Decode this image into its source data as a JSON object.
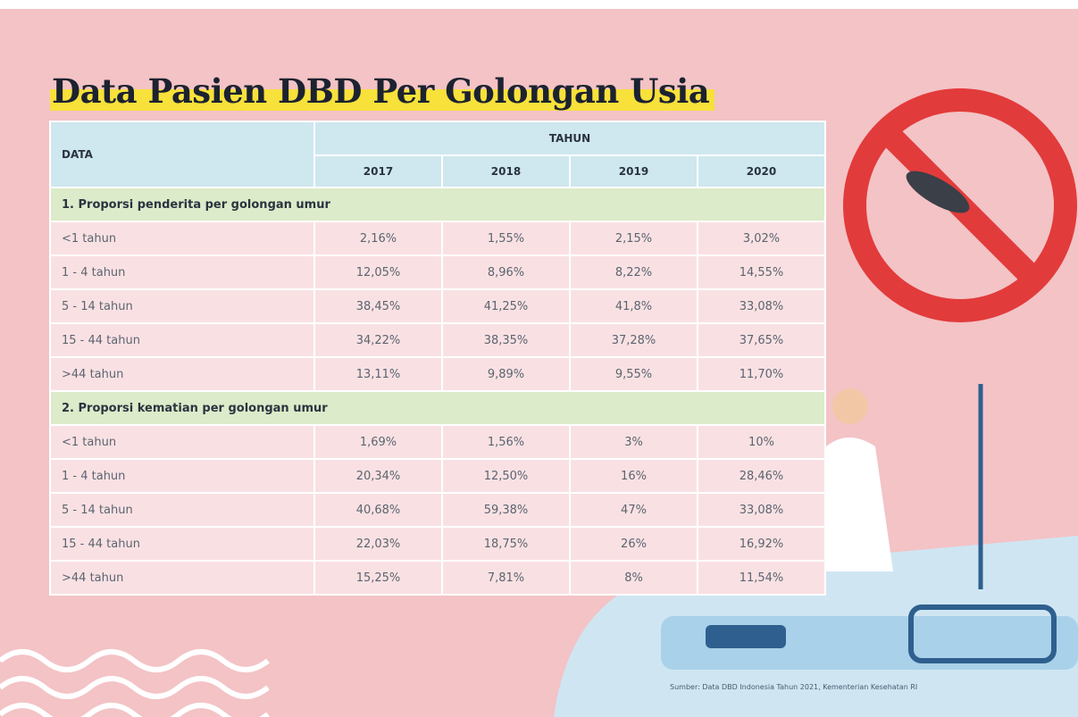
{
  "title": "Data Pasien DBD Per Golongan Usia",
  "table": {
    "header": {
      "data": "DATA",
      "tahun": "TAHUN",
      "years": [
        "2017",
        "2018",
        "2019",
        "2020"
      ]
    },
    "sections": [
      {
        "title": "1. Proporsi penderita per golongan umur",
        "rows": [
          [
            "<1 tahun",
            "2,16%",
            "1,55%",
            "2,15%",
            "3,02%"
          ],
          [
            "1 - 4 tahun",
            "12,05%",
            "8,96%",
            "8,22%",
            "14,55%"
          ],
          [
            "5 - 14 tahun",
            "38,45%",
            "41,25%",
            "41,8%",
            "33,08%"
          ],
          [
            "15 - 44 tahun",
            "34,22%",
            "38,35%",
            "37,28%",
            "37,65%"
          ],
          [
            ">44 tahun",
            "13,11%",
            "9,89%",
            "9,55%",
            "11,70%"
          ]
        ]
      },
      {
        "title": "2. Proporsi kematian per golongan umur",
        "rows": [
          [
            "<1 tahun",
            "1,69%",
            "1,56%",
            "3%",
            "10%"
          ],
          [
            "1 - 4 tahun",
            "20,34%",
            "12,50%",
            "16%",
            "28,46%"
          ],
          [
            "5 - 14 tahun",
            "40,68%",
            "59,38%",
            "47%",
            "33,08%"
          ],
          [
            "15 - 44 tahun",
            "22,03%",
            "18,75%",
            "26%",
            "16,92%"
          ],
          [
            ">44 tahun",
            "15,25%",
            "7,81%",
            "8%",
            "11,54%"
          ]
        ]
      }
    ]
  },
  "source": "Sumber: Data DBD Indonesia Tahun 2021, Kementerian Kesehatan RI"
}
